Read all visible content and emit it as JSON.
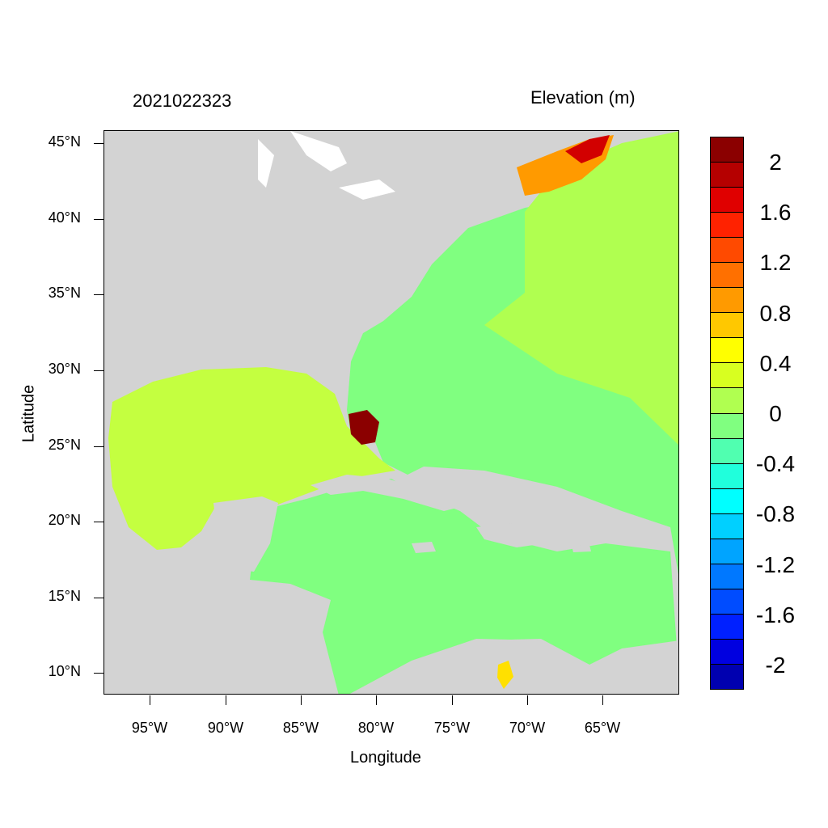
{
  "header": {
    "timestamp": "2021022323",
    "variable": "Elevation (m)"
  },
  "axes": {
    "xlabel": "Longitude",
    "ylabel": "Latitude",
    "x_ticks": [
      "95°W",
      "90°W",
      "85°W",
      "80°W",
      "75°W",
      "70°W",
      "65°W"
    ],
    "y_ticks": [
      "45°N",
      "40°N",
      "35°N",
      "30°N",
      "25°N",
      "20°N",
      "15°N",
      "10°N"
    ]
  },
  "colorbar": {
    "labels": [
      "2",
      "1.6",
      "1.2",
      "0.8",
      "0.4",
      "0",
      "-0.4",
      "-0.8",
      "-1.2",
      "-1.6",
      "-2"
    ],
    "colors": [
      "#8b0000",
      "#b50000",
      "#e00000",
      "#ff2200",
      "#ff4a00",
      "#ff7000",
      "#ff9a00",
      "#ffc800",
      "#ffff00",
      "#d8ff20",
      "#b0ff50",
      "#80ff80",
      "#50ffb0",
      "#20ffdc",
      "#00ffff",
      "#00d0ff",
      "#00a4ff",
      "#0078ff",
      "#004cff",
      "#0020ff",
      "#0000e0",
      "#0000b0"
    ]
  },
  "colors": {
    "land": "#d3d3d3",
    "water": "#ffffff",
    "sea_zero": "#80ff80",
    "sea_positive_low": "#b0ff50"
  }
}
